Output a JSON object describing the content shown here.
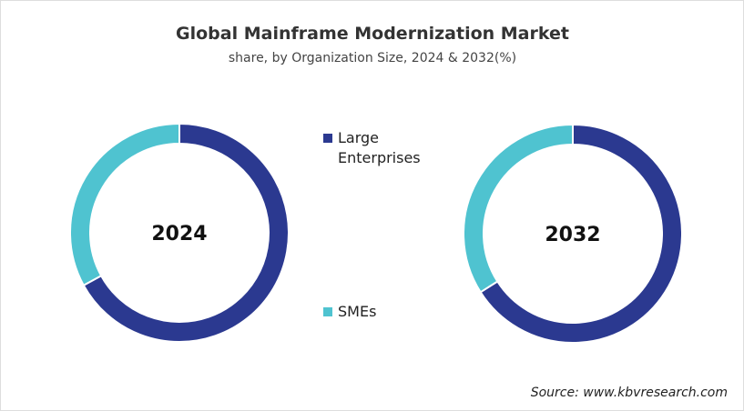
{
  "title": "Global Mainframe Modernization Market",
  "subtitle": "share, by Organization Size, 2024 & 2032(%)",
  "source": "Source: www.kbvresearch.com",
  "chart_data": [
    {
      "type": "pie",
      "title": "2024",
      "categories": [
        "Large Enterprises",
        "SMEs"
      ],
      "values": [
        67,
        33
      ],
      "colors": [
        "#2b3990",
        "#4fc3d0"
      ]
    },
    {
      "type": "pie",
      "title": "2032",
      "categories": [
        "Large Enterprises",
        "SMEs"
      ],
      "values": [
        66,
        34
      ],
      "colors": [
        "#2b3990",
        "#4fc3d0"
      ]
    }
  ]
}
